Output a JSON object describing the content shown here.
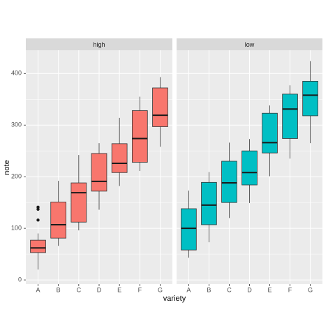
{
  "chart_data": {
    "type": "box",
    "x_label": "variety",
    "y_label": "note",
    "categories": [
      "A",
      "B",
      "C",
      "D",
      "E",
      "F",
      "G"
    ],
    "ylim": [
      -8,
      445
    ],
    "yticks": [
      0,
      100,
      200,
      300,
      400
    ],
    "grid": true,
    "series": [
      {
        "name": "high",
        "color": "#F8766D",
        "min": [
          20,
          66,
          96,
          136,
          182,
          211,
          258
        ],
        "q1": [
          53,
          81,
          112,
          172,
          208,
          228,
          297
        ],
        "median": [
          62,
          107,
          169,
          191,
          226,
          274,
          319
        ],
        "q3": [
          77,
          151,
          188,
          245,
          264,
          328,
          372
        ],
        "max": [
          90,
          192,
          242,
          265,
          314,
          355,
          393
        ],
        "outliers": [
          [
            141,
            137,
            116
          ],
          [],
          [],
          [],
          [],
          [],
          []
        ]
      },
      {
        "name": "low",
        "color": "#00BFC4",
        "min": [
          43,
          73,
          120,
          149,
          201,
          235,
          265
        ],
        "q1": [
          58,
          107,
          150,
          184,
          246,
          274,
          318
        ],
        "median": [
          100,
          145,
          188,
          208,
          266,
          331,
          358
        ],
        "q3": [
          138,
          189,
          230,
          250,
          323,
          360,
          385
        ],
        "max": [
          173,
          209,
          266,
          273,
          338,
          377,
          424
        ],
        "outliers": [
          [],
          [],
          [],
          [],
          [],
          [],
          []
        ]
      }
    ]
  }
}
